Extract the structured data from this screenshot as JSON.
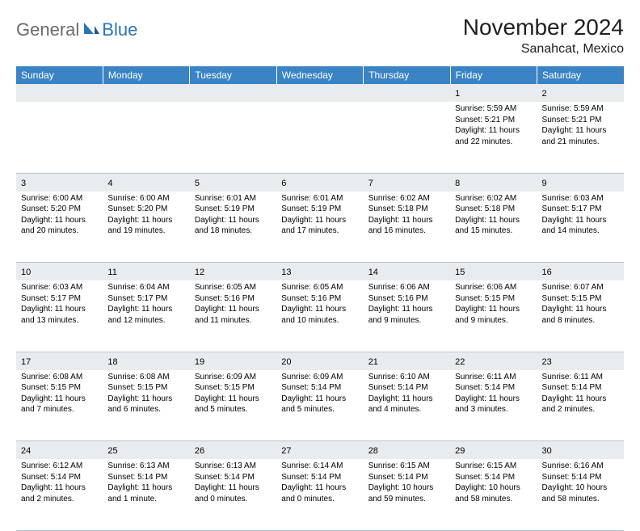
{
  "logo": {
    "general": "General",
    "blue": "Blue"
  },
  "title": "November 2024",
  "location": "Sanahcat, Mexico",
  "colors": {
    "header_bg": "#3a83c4",
    "header_text": "#ffffff",
    "daynum_bg": "#e9ecef",
    "border": "#b8c4d0",
    "logo_gray": "#6a6a6a",
    "logo_blue": "#2b74b8"
  },
  "weekdays": [
    "Sunday",
    "Monday",
    "Tuesday",
    "Wednesday",
    "Thursday",
    "Friday",
    "Saturday"
  ],
  "weeks": [
    [
      {
        "n": "",
        "sr": "",
        "ss": "",
        "dl": ""
      },
      {
        "n": "",
        "sr": "",
        "ss": "",
        "dl": ""
      },
      {
        "n": "",
        "sr": "",
        "ss": "",
        "dl": ""
      },
      {
        "n": "",
        "sr": "",
        "ss": "",
        "dl": ""
      },
      {
        "n": "",
        "sr": "",
        "ss": "",
        "dl": ""
      },
      {
        "n": "1",
        "sr": "Sunrise: 5:59 AM",
        "ss": "Sunset: 5:21 PM",
        "dl": "Daylight: 11 hours and 22 minutes."
      },
      {
        "n": "2",
        "sr": "Sunrise: 5:59 AM",
        "ss": "Sunset: 5:21 PM",
        "dl": "Daylight: 11 hours and 21 minutes."
      }
    ],
    [
      {
        "n": "3",
        "sr": "Sunrise: 6:00 AM",
        "ss": "Sunset: 5:20 PM",
        "dl": "Daylight: 11 hours and 20 minutes."
      },
      {
        "n": "4",
        "sr": "Sunrise: 6:00 AM",
        "ss": "Sunset: 5:20 PM",
        "dl": "Daylight: 11 hours and 19 minutes."
      },
      {
        "n": "5",
        "sr": "Sunrise: 6:01 AM",
        "ss": "Sunset: 5:19 PM",
        "dl": "Daylight: 11 hours and 18 minutes."
      },
      {
        "n": "6",
        "sr": "Sunrise: 6:01 AM",
        "ss": "Sunset: 5:19 PM",
        "dl": "Daylight: 11 hours and 17 minutes."
      },
      {
        "n": "7",
        "sr": "Sunrise: 6:02 AM",
        "ss": "Sunset: 5:18 PM",
        "dl": "Daylight: 11 hours and 16 minutes."
      },
      {
        "n": "8",
        "sr": "Sunrise: 6:02 AM",
        "ss": "Sunset: 5:18 PM",
        "dl": "Daylight: 11 hours and 15 minutes."
      },
      {
        "n": "9",
        "sr": "Sunrise: 6:03 AM",
        "ss": "Sunset: 5:17 PM",
        "dl": "Daylight: 11 hours and 14 minutes."
      }
    ],
    [
      {
        "n": "10",
        "sr": "Sunrise: 6:03 AM",
        "ss": "Sunset: 5:17 PM",
        "dl": "Daylight: 11 hours and 13 minutes."
      },
      {
        "n": "11",
        "sr": "Sunrise: 6:04 AM",
        "ss": "Sunset: 5:17 PM",
        "dl": "Daylight: 11 hours and 12 minutes."
      },
      {
        "n": "12",
        "sr": "Sunrise: 6:05 AM",
        "ss": "Sunset: 5:16 PM",
        "dl": "Daylight: 11 hours and 11 minutes."
      },
      {
        "n": "13",
        "sr": "Sunrise: 6:05 AM",
        "ss": "Sunset: 5:16 PM",
        "dl": "Daylight: 11 hours and 10 minutes."
      },
      {
        "n": "14",
        "sr": "Sunrise: 6:06 AM",
        "ss": "Sunset: 5:16 PM",
        "dl": "Daylight: 11 hours and 9 minutes."
      },
      {
        "n": "15",
        "sr": "Sunrise: 6:06 AM",
        "ss": "Sunset: 5:15 PM",
        "dl": "Daylight: 11 hours and 9 minutes."
      },
      {
        "n": "16",
        "sr": "Sunrise: 6:07 AM",
        "ss": "Sunset: 5:15 PM",
        "dl": "Daylight: 11 hours and 8 minutes."
      }
    ],
    [
      {
        "n": "17",
        "sr": "Sunrise: 6:08 AM",
        "ss": "Sunset: 5:15 PM",
        "dl": "Daylight: 11 hours and 7 minutes."
      },
      {
        "n": "18",
        "sr": "Sunrise: 6:08 AM",
        "ss": "Sunset: 5:15 PM",
        "dl": "Daylight: 11 hours and 6 minutes."
      },
      {
        "n": "19",
        "sr": "Sunrise: 6:09 AM",
        "ss": "Sunset: 5:15 PM",
        "dl": "Daylight: 11 hours and 5 minutes."
      },
      {
        "n": "20",
        "sr": "Sunrise: 6:09 AM",
        "ss": "Sunset: 5:14 PM",
        "dl": "Daylight: 11 hours and 5 minutes."
      },
      {
        "n": "21",
        "sr": "Sunrise: 6:10 AM",
        "ss": "Sunset: 5:14 PM",
        "dl": "Daylight: 11 hours and 4 minutes."
      },
      {
        "n": "22",
        "sr": "Sunrise: 6:11 AM",
        "ss": "Sunset: 5:14 PM",
        "dl": "Daylight: 11 hours and 3 minutes."
      },
      {
        "n": "23",
        "sr": "Sunrise: 6:11 AM",
        "ss": "Sunset: 5:14 PM",
        "dl": "Daylight: 11 hours and 2 minutes."
      }
    ],
    [
      {
        "n": "24",
        "sr": "Sunrise: 6:12 AM",
        "ss": "Sunset: 5:14 PM",
        "dl": "Daylight: 11 hours and 2 minutes."
      },
      {
        "n": "25",
        "sr": "Sunrise: 6:13 AM",
        "ss": "Sunset: 5:14 PM",
        "dl": "Daylight: 11 hours and 1 minute."
      },
      {
        "n": "26",
        "sr": "Sunrise: 6:13 AM",
        "ss": "Sunset: 5:14 PM",
        "dl": "Daylight: 11 hours and 0 minutes."
      },
      {
        "n": "27",
        "sr": "Sunrise: 6:14 AM",
        "ss": "Sunset: 5:14 PM",
        "dl": "Daylight: 11 hours and 0 minutes."
      },
      {
        "n": "28",
        "sr": "Sunrise: 6:15 AM",
        "ss": "Sunset: 5:14 PM",
        "dl": "Daylight: 10 hours and 59 minutes."
      },
      {
        "n": "29",
        "sr": "Sunrise: 6:15 AM",
        "ss": "Sunset: 5:14 PM",
        "dl": "Daylight: 10 hours and 58 minutes."
      },
      {
        "n": "30",
        "sr": "Sunrise: 6:16 AM",
        "ss": "Sunset: 5:14 PM",
        "dl": "Daylight: 10 hours and 58 minutes."
      }
    ]
  ]
}
